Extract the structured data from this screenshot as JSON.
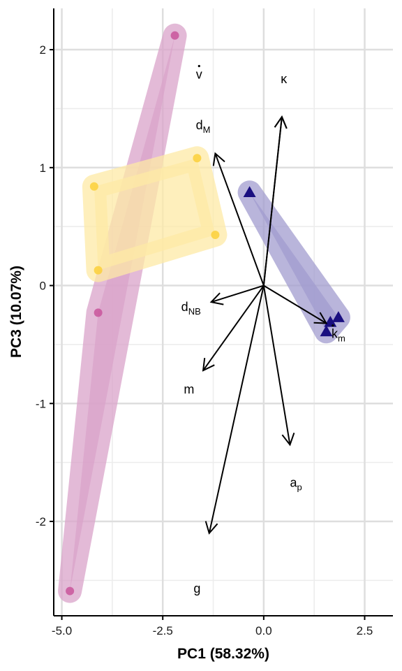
{
  "chart_data": {
    "type": "scatter",
    "title": "",
    "xlabel": "PC1 (58.32%)",
    "ylabel": "PC3 (10.07%)",
    "xlim": [
      -5.2,
      3.2
    ],
    "ylim": [
      -2.8,
      2.35
    ],
    "xticks": [
      -5.0,
      -2.5,
      0.0,
      2.5
    ],
    "xtick_labels": [
      "-5.0",
      "-2.5",
      "0.0",
      "2.5"
    ],
    "yticks": [
      -2,
      -1,
      0,
      1,
      2
    ],
    "ytick_labels": [
      "-2",
      "-1",
      "0",
      "1",
      "2"
    ],
    "grid": true,
    "legend": "none",
    "groups": [
      {
        "color": "#c9559b",
        "hull_color": "#d9a3c9",
        "marker": "circle",
        "points": [
          [
            -2.2,
            2.12
          ],
          [
            -4.1,
            -0.23
          ],
          [
            -4.8,
            -2.59
          ]
        ]
      },
      {
        "color": "#fcd03a",
        "hull_color": "#fde9a6",
        "marker": "circle",
        "points": [
          [
            -1.65,
            1.08
          ],
          [
            -4.2,
            0.84
          ],
          [
            -1.2,
            0.43
          ],
          [
            -4.1,
            0.13
          ]
        ]
      },
      {
        "color": "#1a0f80",
        "hull_color": "#a19ccf",
        "marker": "triangle",
        "points": [
          [
            -0.35,
            0.79
          ],
          [
            1.65,
            -0.31
          ],
          [
            1.85,
            -0.27
          ],
          [
            1.55,
            -0.39
          ]
        ]
      }
    ],
    "loadings": [
      {
        "label": "v",
        "accent": "dot",
        "sub": "",
        "x": 0.45,
        "y": 1.43,
        "label_x": -1.6,
        "label_y": 1.79
      },
      {
        "label": "κ",
        "accent": "",
        "sub": "",
        "x": 0.45,
        "y": 1.43,
        "label_x": 0.5,
        "label_y": 1.75
      },
      {
        "label": "d",
        "accent": "",
        "sub": "M",
        "x": -1.2,
        "y": 1.12,
        "label_x": -1.5,
        "label_y": 1.36
      },
      {
        "label": "d",
        "accent": "",
        "sub": "NB",
        "x": -1.3,
        "y": -0.14,
        "label_x": -1.8,
        "label_y": -0.18
      },
      {
        "label": "k",
        "accent": "dot",
        "sub": "m",
        "x": 1.55,
        "y": -0.32,
        "label_x": 1.85,
        "label_y": -0.41
      },
      {
        "label": "m",
        "accent": "",
        "sub": "",
        "x": -1.5,
        "y": -0.72,
        "label_x": -1.85,
        "label_y": -0.88
      },
      {
        "label": "a",
        "accent": "",
        "sub": "p",
        "x": 0.65,
        "y": -1.35,
        "label_x": 0.8,
        "label_y": -1.67
      },
      {
        "label": "g",
        "accent": "",
        "sub": "",
        "x": -1.35,
        "y": -2.1,
        "label_x": -1.65,
        "label_y": -2.57
      }
    ]
  }
}
